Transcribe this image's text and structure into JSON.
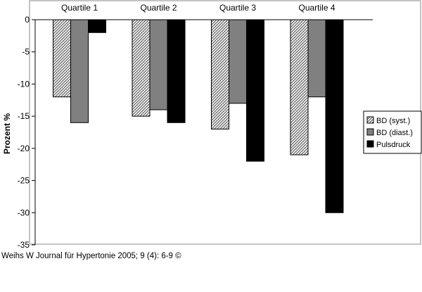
{
  "chart_data": {
    "type": "bar",
    "categories": [
      "Quartile 1",
      "Quartile 2",
      "Quartile 3",
      "Quartile 4"
    ],
    "series": [
      {
        "name": "BD (syst.)",
        "values": [
          -12,
          -15,
          -17,
          -21
        ],
        "fill": "hatch",
        "color": "#e6e6e6"
      },
      {
        "name": "BD (diast.)",
        "values": [
          -16,
          -14,
          -13,
          -12
        ],
        "fill": "solid",
        "color": "#808080"
      },
      {
        "name": "Pulsdruck",
        "values": [
          -2,
          -16,
          -22,
          -30
        ],
        "fill": "solid",
        "color": "#000000"
      }
    ],
    "ylabel": "Prozent %",
    "xlabel": "",
    "ylim": [
      -35,
      0
    ],
    "yticks": [
      0,
      -5,
      -10,
      -15,
      -20,
      -25,
      -30,
      -35
    ],
    "category_labels_position": "top",
    "grid": false,
    "legend_position": "right"
  },
  "citation": "Weihs W Journal für Hypertonie 2005; 9 (4): 6-9 ©"
}
